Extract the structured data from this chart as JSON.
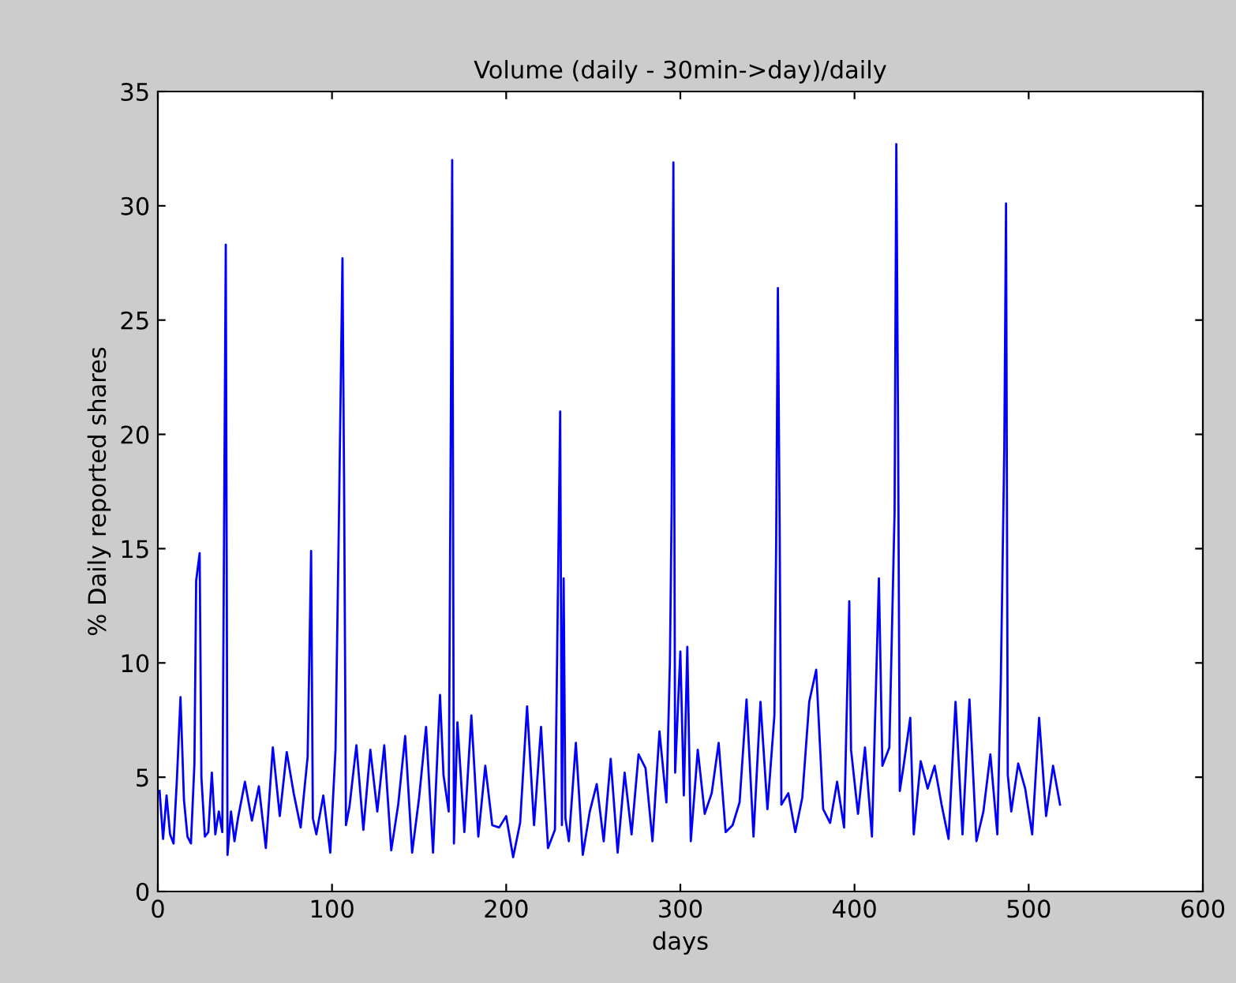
{
  "chart_data": {
    "type": "line",
    "title": "Volume (daily - 30min->day)/daily",
    "xlabel": "days",
    "ylabel": "% Daily reported shares",
    "xlim": [
      0,
      600
    ],
    "ylim": [
      0,
      35
    ],
    "xticks": [
      0,
      100,
      200,
      300,
      400,
      500,
      600
    ],
    "yticks": [
      0,
      5,
      10,
      15,
      20,
      25,
      30,
      35
    ],
    "grid": false,
    "legend": false,
    "marker": "none",
    "line_style": "solid",
    "series": [
      {
        "color": "#0000ff",
        "x": [
          1,
          3,
          5,
          7,
          9,
          11,
          13,
          15,
          17,
          19,
          21,
          22,
          24,
          25,
          27,
          29,
          31,
          33,
          35,
          37,
          38,
          39,
          40,
          42,
          44,
          46,
          50,
          54,
          58,
          62,
          66,
          70,
          74,
          78,
          82,
          86,
          87,
          88,
          89,
          91,
          95,
          99,
          102,
          104,
          106,
          107,
          108,
          110,
          114,
          118,
          122,
          126,
          130,
          134,
          138,
          142,
          146,
          150,
          154,
          158,
          162,
          164,
          167,
          168,
          169,
          170,
          172,
          176,
          180,
          184,
          188,
          192,
          196,
          200,
          204,
          208,
          212,
          216,
          220,
          224,
          228,
          231,
          232,
          233,
          234,
          236,
          240,
          244,
          248,
          252,
          256,
          260,
          264,
          268,
          272,
          276,
          280,
          284,
          288,
          292,
          294,
          295,
          296,
          297,
          300,
          302,
          304,
          306,
          310,
          314,
          318,
          322,
          326,
          330,
          334,
          338,
          342,
          346,
          350,
          354,
          355,
          356,
          357,
          358,
          362,
          366,
          370,
          374,
          378,
          382,
          386,
          390,
          394,
          397,
          398,
          402,
          406,
          410,
          414,
          416,
          420,
          423,
          424,
          425,
          426,
          428,
          432,
          434,
          438,
          442,
          446,
          450,
          454,
          458,
          462,
          466,
          470,
          474,
          478,
          482,
          484,
          486,
          487,
          488,
          490,
          494,
          498,
          502,
          506,
          510,
          514,
          518
        ],
        "values": [
          4.4,
          2.3,
          4.2,
          2.5,
          2.1,
          5,
          8.5,
          4,
          2.4,
          2.1,
          5.6,
          13.6,
          14.8,
          5,
          2.4,
          2.6,
          5.2,
          2.5,
          3.5,
          2.6,
          15.5,
          28.3,
          1.6,
          3.5,
          2.2,
          3.2,
          4.8,
          3.1,
          4.6,
          1.9,
          6.3,
          3.3,
          6.1,
          4.3,
          2.8,
          5.9,
          10.3,
          14.9,
          3.2,
          2.5,
          4.2,
          1.7,
          6.2,
          16.5,
          27.7,
          17,
          2.9,
          3.7,
          6.4,
          2.7,
          6.2,
          3.5,
          6.4,
          1.8,
          3.8,
          6.8,
          1.7,
          4.1,
          7.2,
          1.7,
          8.6,
          5.1,
          3.5,
          17.5,
          32,
          2.1,
          7.4,
          2.6,
          7.7,
          2.4,
          5.5,
          2.9,
          2.8,
          3.3,
          1.5,
          3,
          8.1,
          2.9,
          7.2,
          1.9,
          2.7,
          21,
          2.9,
          13.7,
          3.2,
          2.2,
          6.5,
          1.6,
          3.5,
          4.7,
          2.2,
          5.8,
          1.7,
          5.2,
          2.5,
          6,
          5.4,
          2.2,
          7,
          3.9,
          10,
          16.7,
          31.9,
          5.2,
          10.5,
          4.2,
          10.7,
          2.2,
          6.2,
          3.4,
          4.3,
          6.5,
          2.6,
          2.9,
          3.9,
          8.4,
          2.4,
          8.3,
          3.6,
          7.7,
          15.2,
          26.4,
          16.1,
          3.8,
          4.3,
          2.6,
          4.1,
          8.3,
          9.7,
          3.6,
          3,
          4.8,
          2.8,
          12.7,
          6.2,
          3.4,
          6.3,
          2.4,
          13.7,
          5.5,
          6.3,
          16.6,
          32.7,
          20.4,
          4.4,
          5.4,
          7.6,
          2.5,
          5.7,
          4.5,
          5.5,
          3.8,
          2.3,
          8.3,
          2.5,
          8.4,
          2.2,
          3.5,
          6,
          2.5,
          9.2,
          19.4,
          30.1,
          5.1,
          3.5,
          5.6,
          4.5,
          2.5,
          7.6,
          3.3,
          5.5,
          3.8
        ]
      }
    ]
  }
}
